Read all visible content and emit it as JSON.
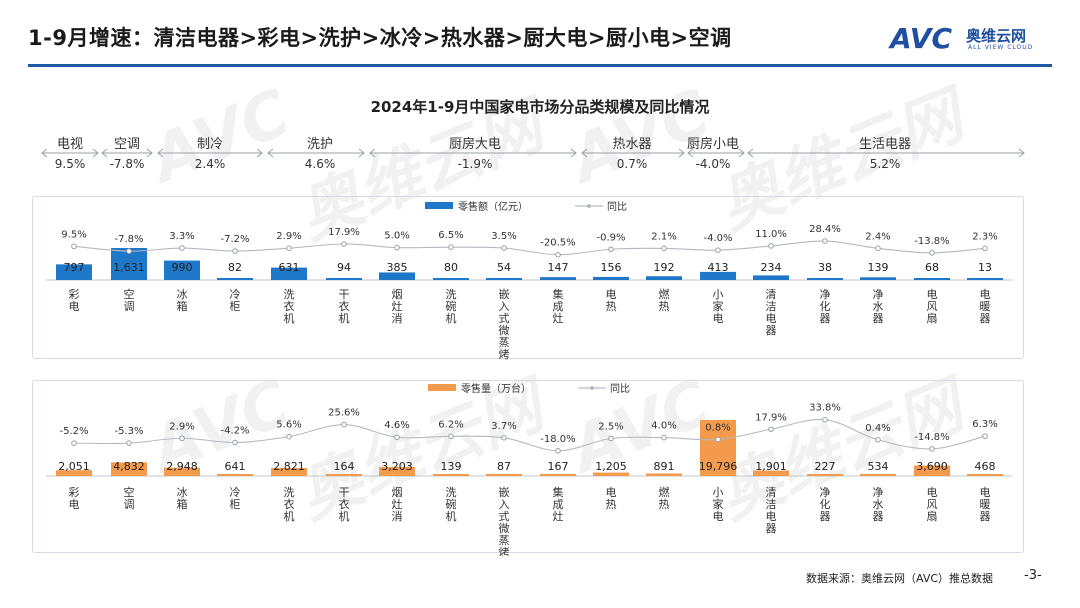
{
  "header": {
    "title": "1-9月增速：清洁电器>彩电>洗护>冰冷>热水器>厨大电>厨小电>空调",
    "logo_mark": "AVC",
    "logo_cn": "奥维云网",
    "logo_en": "ALL VIEW CLOUD",
    "colors": {
      "accent": "#1f5aa6"
    }
  },
  "chart_title": "2024年1-9月中国家电市场分品类规模及同比情况",
  "segments": [
    {
      "label": "电视",
      "value": "9.5%"
    },
    {
      "label": "空调",
      "value": "-7.8%"
    },
    {
      "label": "制冷",
      "value": "2.4%"
    },
    {
      "label": "洗护",
      "value": "4.6%"
    },
    {
      "label": "厨房大电",
      "value": "-1.9%"
    },
    {
      "label": "热水器",
      "value": "0.7%"
    },
    {
      "label": "厨房小电",
      "value": "-4.0%"
    },
    {
      "label": "生活电器",
      "value": "5.2%"
    }
  ],
  "chart_data": [
    {
      "type": "bar",
      "categories": [
        "彩电",
        "空调",
        "冰箱",
        "冷柜",
        "洗衣机",
        "干衣机",
        "烟灶消",
        "洗碗机",
        "嵌入式微蒸烤",
        "集成灶",
        "电热",
        "燃热",
        "小家电",
        "清洁电器",
        "净化器",
        "净水器",
        "电风扇",
        "电暖器"
      ],
      "series": [
        {
          "name": "零售额（亿元）",
          "kind": "bar",
          "color": "#1f77c9",
          "values": [
            797,
            1631,
            990,
            82,
            631,
            94,
            385,
            80,
            54,
            147,
            156,
            192,
            413,
            234,
            38,
            139,
            68,
            13
          ],
          "labels": [
            "797",
            "1,631",
            "990",
            "82",
            "631",
            "94",
            "385",
            "80",
            "54",
            "147",
            "156",
            "192",
            "413",
            "234",
            "38",
            "139",
            "68",
            "13"
          ]
        },
        {
          "name": "同比",
          "kind": "line",
          "color": "#b5b9bf",
          "values": [
            9.5,
            -7.8,
            3.3,
            -7.2,
            2.9,
            17.9,
            5.0,
            6.5,
            3.5,
            -20.5,
            -0.9,
            2.1,
            -4.0,
            11.0,
            28.4,
            2.4,
            -13.8,
            2.3
          ],
          "labels": [
            "9.5%",
            "-7.8%",
            "3.3%",
            "-7.2%",
            "2.9%",
            "17.9%",
            "5.0%",
            "6.5%",
            "3.5%",
            "-20.5%",
            "-0.9%",
            "2.1%",
            "-4.0%",
            "11.0%",
            "28.4%",
            "2.4%",
            "-13.8%",
            "2.3%"
          ]
        }
      ],
      "legend": "top-center"
    },
    {
      "type": "bar",
      "categories": [
        "彩电",
        "空调",
        "冰箱",
        "冷柜",
        "洗衣机",
        "干衣机",
        "烟灶消",
        "洗碗机",
        "嵌入式微蒸烤",
        "集成灶",
        "电热",
        "燃热",
        "小家电",
        "清洁电器",
        "净化器",
        "净水器",
        "电风扇",
        "电暖器"
      ],
      "series": [
        {
          "name": "零售量（万台）",
          "kind": "bar",
          "color": "#f39a4c",
          "values": [
            2051,
            4832,
            2948,
            641,
            2821,
            164,
            3203,
            139,
            87,
            167,
            1205,
            891,
            19796,
            1901,
            227,
            534,
            3690,
            468
          ],
          "labels": [
            "2,051",
            "4,832",
            "2,948",
            "641",
            "2,821",
            "164",
            "3,203",
            "139",
            "87",
            "167",
            "1,205",
            "891",
            "19,796",
            "1,901",
            "227",
            "534",
            "3,690",
            "468"
          ]
        },
        {
          "name": "同比",
          "kind": "line",
          "color": "#b5b9bf",
          "values": [
            -5.2,
            -5.3,
            2.9,
            -4.2,
            5.6,
            25.6,
            4.6,
            6.2,
            3.7,
            -18.0,
            2.5,
            4.0,
            0.8,
            17.9,
            33.8,
            0.4,
            -14.8,
            6.3
          ],
          "labels": [
            "-5.2%",
            "-5.3%",
            "2.9%",
            "-4.2%",
            "5.6%",
            "25.6%",
            "4.6%",
            "6.2%",
            "3.7%",
            "-18.0%",
            "2.5%",
            "4.0%",
            "0.8%",
            "17.9%",
            "33.8%",
            "0.4%",
            "-14.8%",
            "6.3%"
          ]
        }
      ],
      "legend": "top-center"
    }
  ],
  "footer": {
    "source": "数据来源：奥维云网（AVC）推总数据",
    "page": "-3-"
  }
}
